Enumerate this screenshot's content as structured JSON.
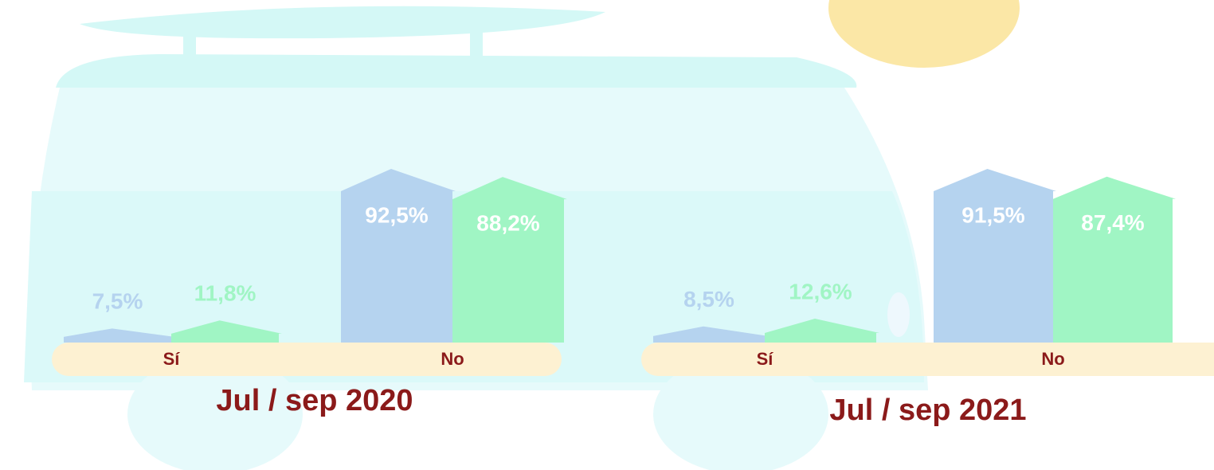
{
  "chart_data": [
    {
      "type": "bar",
      "title": "Jul / sep 2020",
      "categories": [
        "Sí",
        "No"
      ],
      "series": [
        {
          "color": "#b5d3ef",
          "values": [
            7.5,
            92.5
          ],
          "value_labels": [
            "7,5%",
            "92,5%"
          ]
        },
        {
          "color": "#a0f5c4",
          "values": [
            11.8,
            88.2
          ],
          "value_labels": [
            "11,8%",
            "88,2%"
          ]
        }
      ]
    },
    {
      "type": "bar",
      "title": "Jul / sep 2021",
      "categories": [
        "Sí",
        "No"
      ],
      "series": [
        {
          "color": "#b5d3ef",
          "values": [
            8.5,
            91.5
          ],
          "value_labels": [
            "8,5%",
            "91,5%"
          ]
        },
        {
          "color": "#a0f5c4",
          "values": [
            12.6,
            87.4
          ],
          "value_labels": [
            "12,6%",
            "87,4%"
          ]
        }
      ]
    }
  ]
}
